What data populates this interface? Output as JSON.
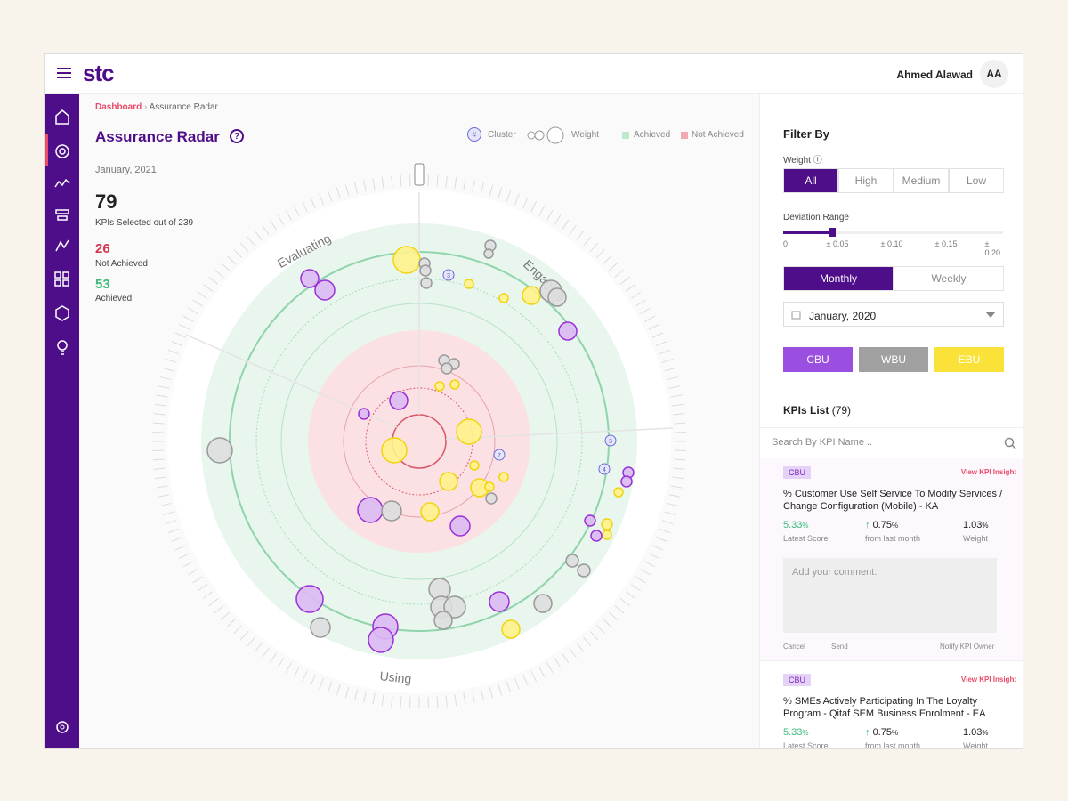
{
  "header": {
    "logo": "stc",
    "user_name": "Ahmed Alawad",
    "initials": "AA"
  },
  "breadcrumb": [
    "Dashboard",
    "Assurance Radar"
  ],
  "page": {
    "title": "Assurance Radar",
    "help": "?",
    "date": "January, 2021"
  },
  "legend": {
    "cluster_icon": "#",
    "cluster": "Cluster",
    "weight": "Weight",
    "achieved": "Achieved",
    "not_achieved": "Not Achieved"
  },
  "stats": {
    "selected": "79",
    "selected_label": "KPIs Selected out of 239",
    "not_achieved": "26",
    "not_achieved_label": "Not Achieved",
    "achieved": "53",
    "achieved_label": "Achieved"
  },
  "radar": {
    "sections": [
      "Evaluating",
      "Engaging",
      "Using"
    ],
    "clusters": [
      "3",
      "7",
      "3",
      "4"
    ]
  },
  "filter": {
    "title": "Filter By",
    "weight_label": "Weight",
    "weight_options": [
      "All",
      "High",
      "Medium",
      "Low"
    ],
    "deviation_label": "Deviation Range",
    "deviation_ticks": [
      "0",
      "± 0.05",
      "± 0.10",
      "± 0.15",
      "± 0.20"
    ],
    "periods": [
      "Monthly",
      "Weekly"
    ],
    "date": "January, 2020",
    "units": [
      "CBU",
      "WBU",
      "EBU"
    ]
  },
  "kpi_list": {
    "title": "KPIs List",
    "count": "(79)",
    "search_placeholder": "Search By KPI Name ..",
    "cards": [
      {
        "tag": "CBU",
        "insight": "View KPI Insight",
        "title": "% Customer Use Self Service To Modify Services / Change Configuration (Mobile) - KA",
        "score": "5.33",
        "score_unit": "%",
        "score_label": "Latest Score",
        "change": "0.75",
        "change_unit": "%",
        "change_label": "from last month",
        "weight": "1.03",
        "weight_unit": "%",
        "weight_label": "Weight",
        "comment_placeholder": "Add your comment.",
        "cancel": "Cancel",
        "send": "Send",
        "notify": "Notify KPI Owner"
      },
      {
        "tag": "CBU",
        "insight": "View KPI Insight",
        "title": "% SMEs Actively Participating In The Loyalty Program - Qitaf SEM Business Enrolment - EA",
        "score": "5.33",
        "score_unit": "%",
        "score_label": "Latest Score",
        "change": "0.75",
        "change_unit": "%",
        "change_label": "from last month",
        "weight": "1.03",
        "weight_unit": "%",
        "weight_label": "Weight"
      }
    ]
  }
}
